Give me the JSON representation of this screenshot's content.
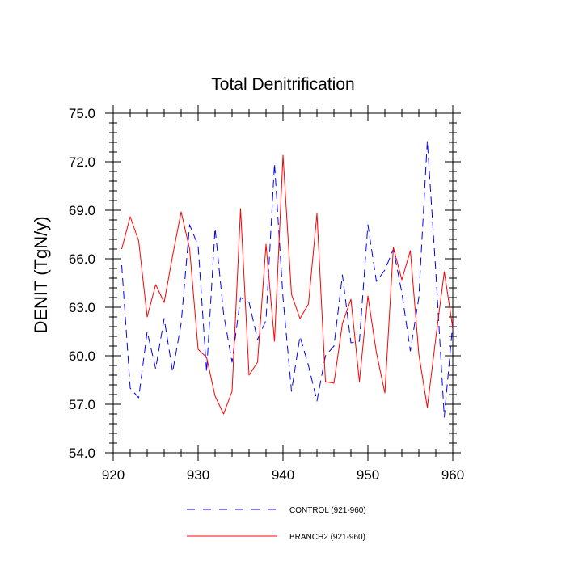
{
  "chart_data": {
    "type": "line",
    "title": "Total Denitrification",
    "ylabel": "DENIT  (TgN/y)",
    "xlabel": "",
    "xlim": [
      920,
      960
    ],
    "ylim": [
      54,
      75
    ],
    "xticks": [
      920,
      930,
      940,
      950,
      960
    ],
    "xtick_labels": [
      "920",
      "930",
      "940",
      "950",
      "960"
    ],
    "yticks": [
      54,
      57,
      60,
      63,
      66,
      69,
      72,
      75
    ],
    "ytick_labels": [
      "54.0",
      "57.0",
      "60.0",
      "63.0",
      "66.0",
      "69.0",
      "72.0",
      "75.0"
    ],
    "grid": false,
    "legend_position": "bottom",
    "x": [
      921,
      922,
      923,
      924,
      925,
      926,
      927,
      928,
      929,
      930,
      931,
      932,
      933,
      934,
      935,
      936,
      937,
      938,
      939,
      940,
      941,
      942,
      943,
      944,
      945,
      946,
      947,
      948,
      949,
      950,
      951,
      952,
      953,
      954,
      955,
      956,
      957,
      958,
      959,
      960
    ],
    "series": [
      {
        "name": "CONTROL (921-960)",
        "color": "#0000ff",
        "dash": "dashed",
        "values": [
          65.6,
          58.0,
          57.4,
          61.5,
          59.2,
          62.3,
          59.0,
          62.0,
          68.1,
          66.8,
          59.0,
          67.9,
          62.6,
          59.6,
          63.6,
          63.3,
          61.0,
          62.2,
          71.9,
          63.6,
          57.8,
          61.2,
          59.4,
          57.2,
          60.0,
          60.6,
          65.0,
          60.8,
          60.9,
          68.1,
          64.6,
          65.3,
          66.6,
          63.9,
          60.3,
          63.6,
          73.3,
          65.2,
          56.2,
          62.0
        ]
      },
      {
        "name": "BRANCH2 (921-960)",
        "color": "#ff0000",
        "dash": "solid",
        "values": [
          66.6,
          68.6,
          67.1,
          62.4,
          64.4,
          63.3,
          66.2,
          68.9,
          66.6,
          60.4,
          59.9,
          57.5,
          56.4,
          57.8,
          69.1,
          58.8,
          59.6,
          66.9,
          60.9,
          72.4,
          63.8,
          62.3,
          63.2,
          68.8,
          58.4,
          58.3,
          62.0,
          63.5,
          58.4,
          63.7,
          60.2,
          57.7,
          66.7,
          64.7,
          66.5,
          60.1,
          56.8,
          61.1,
          65.2,
          61.7
        ]
      }
    ]
  }
}
